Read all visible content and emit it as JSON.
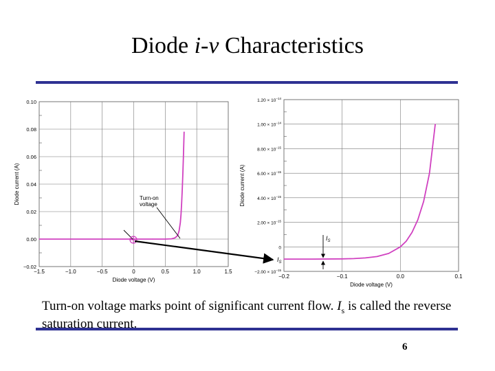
{
  "slide": {
    "title_prefix": "Diode ",
    "title_italic": "i-v",
    "title_suffix": " Characteristics",
    "caption_part1": "Turn-on voltage marks point of significant current flow.  ",
    "caption_symbol": "I",
    "caption_symbol_sub": "s",
    "caption_part2": " is called the reverse saturation current.",
    "page_number": "6",
    "accent_color": "#2e3192",
    "curve_color": "#d040c0"
  },
  "annotations": {
    "turn_on_label_line1": "Turn-on",
    "turn_on_label_line2": "voltage",
    "is_label": "I",
    "is_label_sub": "S"
  },
  "chart_data": [
    {
      "type": "line",
      "title": "",
      "xlabel": "Diode voltage (V)",
      "ylabel": "Diode current (A)",
      "xlim": [
        -1.5,
        1.5
      ],
      "ylim": [
        -0.02,
        0.1
      ],
      "x_ticks": [
        -1.5,
        -1.0,
        -0.5,
        0,
        0.5,
        1.0,
        1.5
      ],
      "x_tick_labels": [
        "−1.5",
        "−1.0",
        "−0.5",
        "0",
        "0.5",
        "1.0",
        "1.5"
      ],
      "y_ticks": [
        -0.02,
        0,
        0.02,
        0.04,
        0.06,
        0.08,
        0.1
      ],
      "y_tick_labels": [
        "−0.02",
        "0.00",
        "0.02",
        "0.04",
        "0.06",
        "0.08",
        "0.10"
      ],
      "grid": true,
      "series": [
        {
          "x": [
            -1.5,
            -1.0,
            -0.5,
            0,
            0.3,
            0.5,
            0.6,
            0.65,
            0.68,
            0.7,
            0.72,
            0.74,
            0.75,
            0.76,
            0.77,
            0.78,
            0.79,
            0.8
          ],
          "y": [
            0,
            0,
            0,
            0,
            0,
            0,
            0.0002,
            0.0008,
            0.0018,
            0.003,
            0.006,
            0.012,
            0.018,
            0.026,
            0.036,
            0.048,
            0.062,
            0.078
          ]
        }
      ],
      "annotations": [
        {
          "text": "Turn-on voltage",
          "x": 0.75,
          "y": 0
        }
      ]
    },
    {
      "type": "line",
      "title": "",
      "xlabel": "Diode voltage (V)",
      "ylabel": "Diode current (A)",
      "xlim": [
        -0.2,
        0.1
      ],
      "ylim": [
        -2e-15,
        1.2e-14
      ],
      "x_ticks": [
        -0.2,
        -0.1,
        0.0,
        0.1
      ],
      "x_tick_labels": [
        "−0.2",
        "−0.1",
        "0.0",
        "0.1"
      ],
      "y_ticks": [
        -2e-15,
        0,
        2e-15,
        4e-15,
        6e-15,
        8e-15,
        1e-14,
        1.2e-14
      ],
      "y_tick_labels": [
        {
          "base": "−2.00 × 10",
          "exp": "−15"
        },
        {
          "base": "0",
          "exp": ""
        },
        {
          "base": "2.00 × 10",
          "exp": "−15"
        },
        {
          "base": "4.00 × 10",
          "exp": "−15"
        },
        {
          "base": "6.00 × 10",
          "exp": "−15"
        },
        {
          "base": "8.00 × 10",
          "exp": "−15"
        },
        {
          "base": "1.00 × 10",
          "exp": "−14"
        },
        {
          "base": "1.20 × 10",
          "exp": "−14"
        }
      ],
      "grid": true,
      "series": [
        {
          "x": [
            -0.2,
            -0.15,
            -0.1,
            -0.08,
            -0.06,
            -0.04,
            -0.02,
            0,
            0.01,
            0.02,
            0.03,
            0.04,
            0.05,
            0.06
          ],
          "y": [
            -1e-15,
            -1e-15,
            -9.8e-16,
            -9.6e-16,
            -9e-16,
            -7.9e-16,
            -5.4e-16,
            0,
            4.6e-16,
            1.18e-15,
            2.2e-15,
            3.7e-15,
            6e-15,
            1e-14
          ]
        }
      ],
      "annotations": [
        {
          "text": "I_S",
          "x": -0.125,
          "y": -1e-15
        }
      ]
    }
  ]
}
